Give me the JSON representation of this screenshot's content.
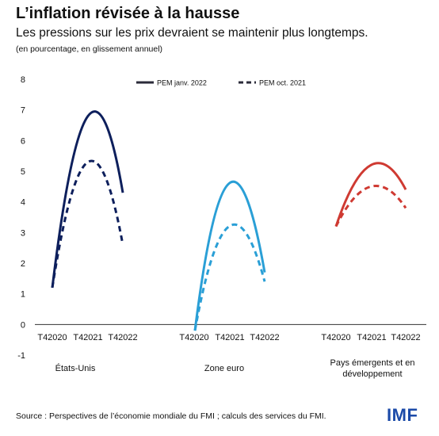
{
  "header": {
    "title": "L’inflation révisée à la hausse",
    "subtitle": "Les pressions sur les prix devraient se maintenir plus longtemps.",
    "note": "(en pourcentage, en glissement annuel)"
  },
  "chart_data": {
    "type": "line",
    "ylim": [
      -1,
      8
    ],
    "yticks": [
      "-1",
      "0",
      "1",
      "2",
      "3",
      "4",
      "5",
      "6",
      "7",
      "8"
    ],
    "x": [
      "T42020",
      "T42021",
      "T42022"
    ],
    "legend": [
      {
        "label": "PEM janv. 2022",
        "style": "solid"
      },
      {
        "label": "PEM oct. 2021",
        "style": "dashed"
      }
    ],
    "groups": [
      {
        "label": "États-Unis",
        "color": "#0d1f5c",
        "series": [
          {
            "name": "PEM janv. 2022",
            "style": "solid",
            "values": [
              1.2,
              6.8,
              4.3
            ]
          },
          {
            "name": "PEM oct. 2021",
            "style": "dashed",
            "values": [
              1.2,
              5.3,
              2.6
            ]
          }
        ]
      },
      {
        "label": "Zone euro",
        "color": "#2a9fd6",
        "series": [
          {
            "name": "PEM janv. 2022",
            "style": "solid",
            "values": [
              -0.2,
              4.6,
              1.7
            ]
          },
          {
            "name": "PEM oct. 2021",
            "style": "dashed",
            "values": [
              -0.2,
              3.2,
              1.4
            ]
          }
        ]
      },
      {
        "label_lines": [
          "Pays émergents et en",
          "développement"
        ],
        "color": "#cf3a32",
        "series": [
          {
            "name": "PEM janv. 2022",
            "style": "solid",
            "values": [
              3.2,
              5.2,
              4.4
            ]
          },
          {
            "name": "PEM oct. 2021",
            "style": "dashed",
            "values": [
              3.2,
              4.5,
              3.8
            ]
          }
        ]
      }
    ]
  },
  "footer": {
    "source": "Source : Perspectives de l’économie mondiale du FMI ; calculs des services du FMI.",
    "logo": "IMF"
  }
}
